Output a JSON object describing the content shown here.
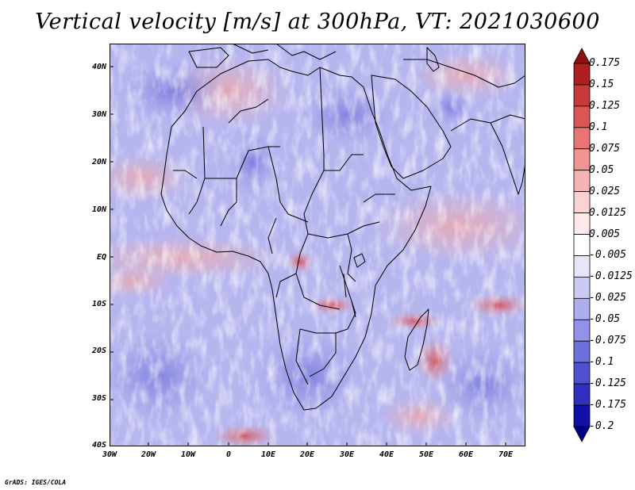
{
  "title": "Vertical velocity [m/s] at 300hPa, VT: 2021030600",
  "credit": "GrADS: IGES/COLA",
  "axes": {
    "lat_labels": [
      "40N",
      "30N",
      "20N",
      "10N",
      "EQ",
      "10S",
      "20S",
      "30S",
      "40S"
    ],
    "lon_labels": [
      "30W",
      "20W",
      "10W",
      "0",
      "10E",
      "20E",
      "30E",
      "40E",
      "50E",
      "60E",
      "70E"
    ]
  },
  "colorbar": {
    "labels": [
      "0.175",
      "0.15",
      "0.125",
      "0.1",
      "0.075",
      "0.05",
      "0.025",
      "0.0125",
      "0.005",
      "-0.005",
      "-0.0125",
      "-0.025",
      "-0.05",
      "-0.075",
      "-0.1",
      "-0.125",
      "-0.175",
      "-0.2"
    ],
    "colors": [
      "#8b0f0f",
      "#b01e1e",
      "#c83a3a",
      "#db5555",
      "#e87474",
      "#f09494",
      "#f6b4b4",
      "#fad2d2",
      "#fdeaea",
      "#ffffff",
      "#e6e6fb",
      "#cacaf5",
      "#aeaeee",
      "#9292e8",
      "#7070dc",
      "#5050cf",
      "#3030c0",
      "#1010a8",
      "#00008c"
    ]
  }
}
